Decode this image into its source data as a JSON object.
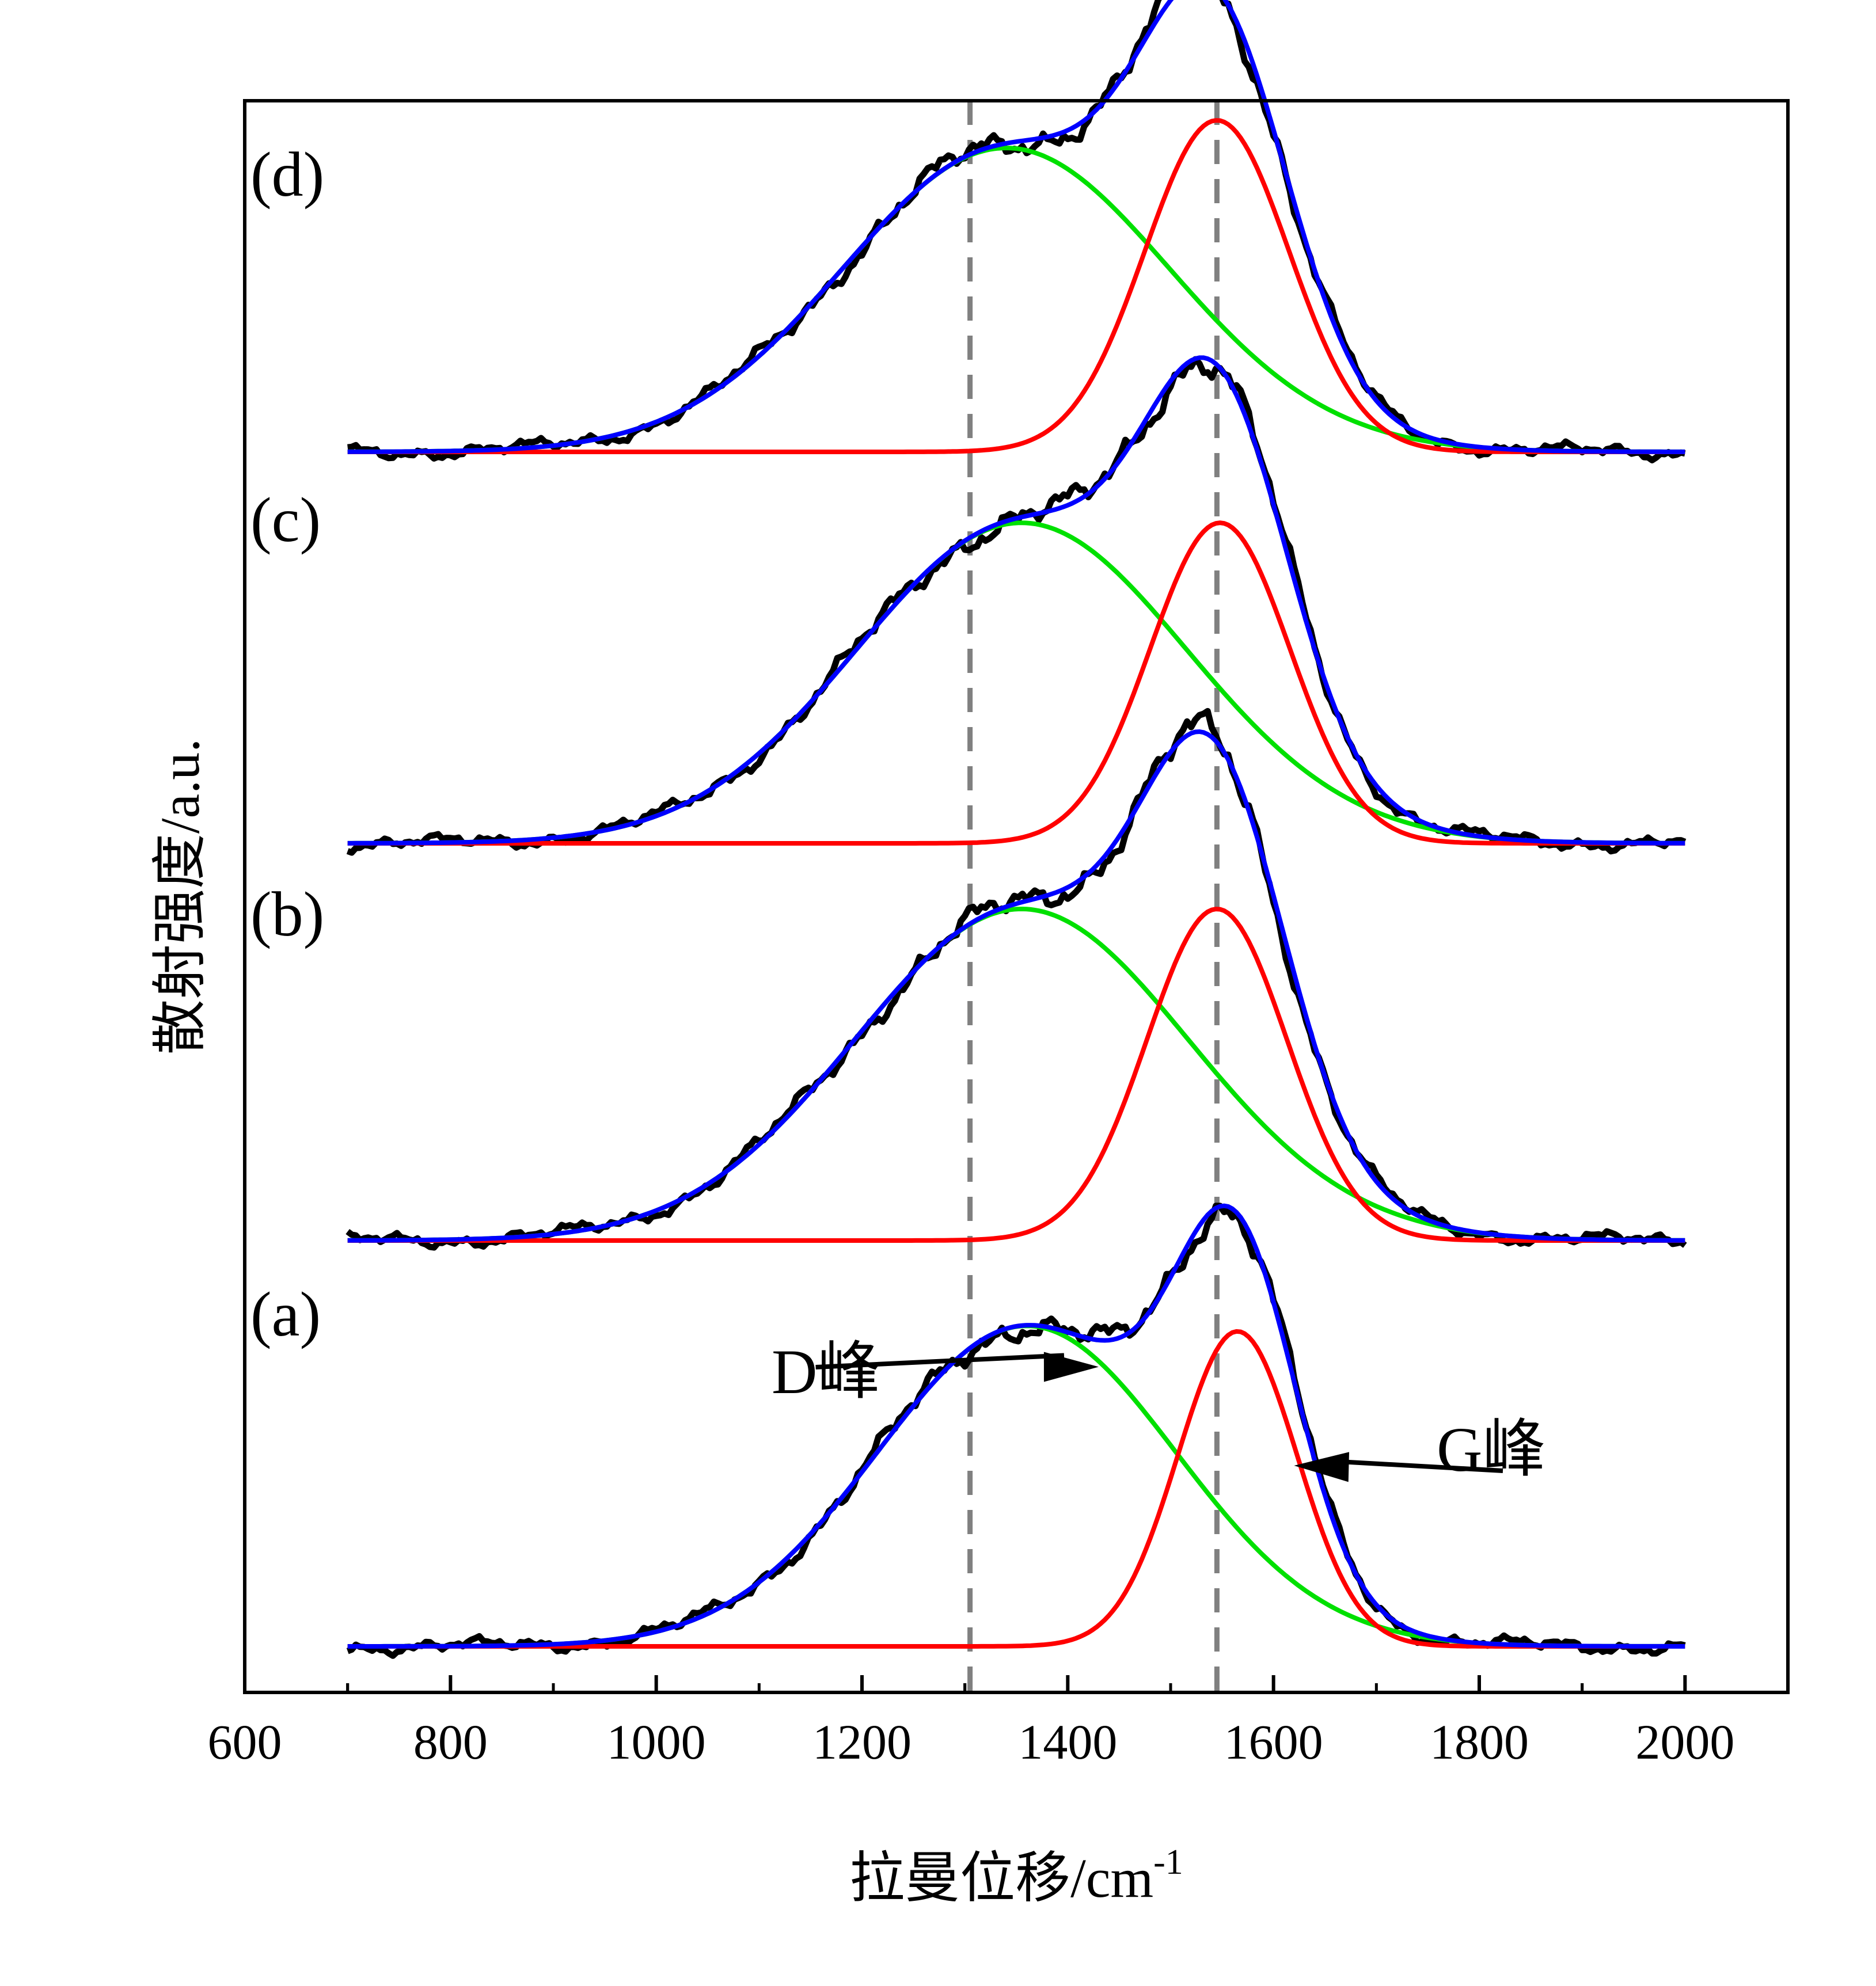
{
  "chart_data": {
    "type": "line",
    "title": "",
    "xlabel": "拉曼位移/cm",
    "xlabel_superscript": "-1",
    "ylabel": "散射强度/a.u.",
    "xlim": [
      600,
      2100
    ],
    "x_ticks": [
      600,
      800,
      1000,
      1200,
      1400,
      1600,
      1800,
      2000
    ],
    "x_tick_labels": [
      "600",
      "800",
      "1000",
      "1200",
      "1400",
      "1600",
      "1800",
      "2000"
    ],
    "y_ticks_shown": false,
    "grid": false,
    "legend": "none",
    "reference_lines_x": [
      1305,
      1545
    ],
    "reference_line_color": "#808080",
    "series_colors": {
      "measured": "#000000",
      "fit": "#0000ff",
      "d_band": "#00e000",
      "g_band": "#ff0000"
    },
    "panels": [
      {
        "label": "(a)",
        "d_band": {
          "center": 1360,
          "sigma": 145,
          "amplitude": 0.58
        },
        "g_band": {
          "center": 1565,
          "sigma": 58,
          "amplitude": 0.57
        },
        "annotations": [
          {
            "text": "D峰",
            "points_to": "d_band"
          },
          {
            "text": "G峰",
            "points_to": "g_band"
          }
        ]
      },
      {
        "label": "(b)",
        "d_band": {
          "center": 1355,
          "sigma": 162,
          "amplitude": 0.6
        },
        "g_band": {
          "center": 1545,
          "sigma": 68,
          "amplitude": 0.6
        }
      },
      {
        "label": "(c)",
        "d_band": {
          "center": 1355,
          "sigma": 160,
          "amplitude": 0.58
        },
        "g_band": {
          "center": 1548,
          "sigma": 68,
          "amplitude": 0.58
        }
      },
      {
        "label": "(d)",
        "d_band": {
          "center": 1340,
          "sigma": 158,
          "amplitude": 0.55
        },
        "g_band": {
          "center": 1545,
          "sigma": 70,
          "amplitude": 0.6
        }
      }
    ],
    "x_range_data": [
      700,
      2000
    ]
  }
}
